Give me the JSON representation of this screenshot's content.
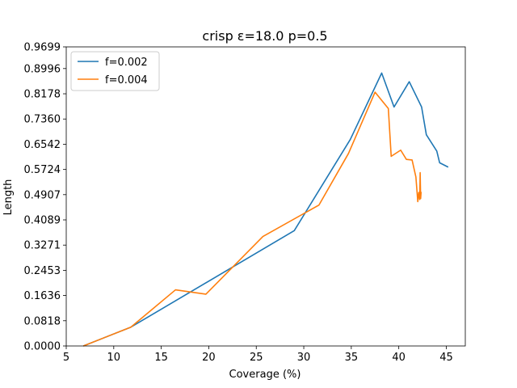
{
  "chart_data": {
    "type": "line",
    "title": "crisp ε=18.0 p=0.5",
    "xlabel": "Coverage (%)",
    "ylabel": "Length",
    "xlim": [
      5,
      47
    ],
    "ylim": [
      0,
      0.9699
    ],
    "xticks": [
      "5",
      "10",
      "15",
      "20",
      "25",
      "30",
      "35",
      "40",
      "45"
    ],
    "yticks": [
      "0.0000",
      "0.0818",
      "0.1636",
      "0.2453",
      "0.3271",
      "0.4089",
      "0.4907",
      "0.5724",
      "0.6542",
      "0.7360",
      "0.8178",
      "0.8996",
      "0.9699"
    ],
    "grid": false,
    "legend": "top-left",
    "series": [
      {
        "name": "f=0.002",
        "color": "#1f77b4",
        "x": [
          6.8,
          11.8,
          29.0,
          34.9,
          38.2,
          39.5,
          41.1,
          42.4,
          42.9,
          44.0,
          44.3,
          45.2
        ],
        "y": [
          0.0,
          0.061,
          0.374,
          0.67,
          0.885,
          0.775,
          0.857,
          0.775,
          0.685,
          0.632,
          0.594,
          0.58
        ]
      },
      {
        "name": "f=0.004",
        "color": "#ff7f0e",
        "x": [
          6.8,
          11.8,
          16.5,
          19.7,
          25.7,
          31.6,
          34.7,
          37.5,
          38.9,
          39.2,
          40.2,
          40.8,
          41.4,
          41.8,
          42.0,
          42.1,
          42.2,
          42.25,
          42.3,
          42.35
        ],
        "y": [
          0.0,
          0.061,
          0.182,
          0.168,
          0.355,
          0.457,
          0.624,
          0.823,
          0.77,
          0.615,
          0.635,
          0.605,
          0.603,
          0.548,
          0.468,
          0.498,
          0.475,
          0.562,
          0.478,
          0.5
        ]
      }
    ]
  }
}
